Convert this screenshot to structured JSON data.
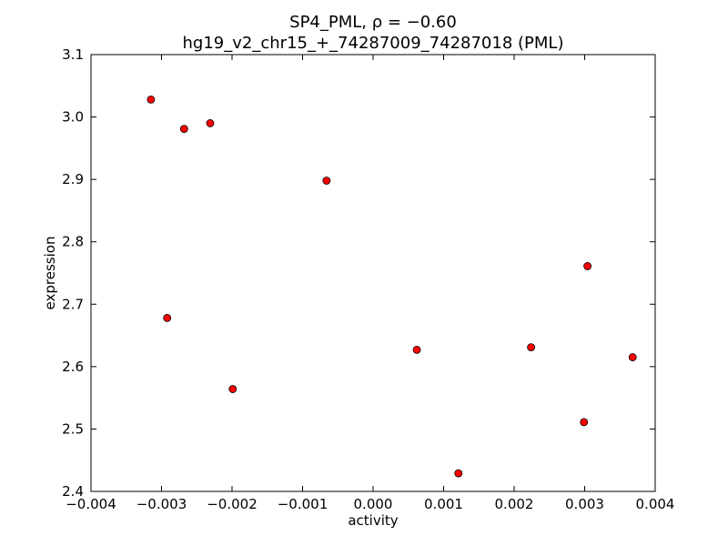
{
  "chart_data": {
    "type": "scatter",
    "title": "SP4_PML, ρ = −0.60",
    "subtitle": "hg19_v2_chr15_+_74287009_74287018 (PML)",
    "xlabel": "activity",
    "ylabel": "expression",
    "xlim": [
      -0.004,
      0.004
    ],
    "ylim": [
      2.4,
      3.1
    ],
    "grid": false,
    "legend": "none",
    "x_ticks": [
      -0.004,
      -0.003,
      -0.002,
      -0.001,
      0.0,
      0.001,
      0.002,
      0.003,
      0.004
    ],
    "x_tick_labels": [
      "−0.004",
      "−0.003",
      "−0.002",
      "−0.001",
      "0.000",
      "0.001",
      "0.002",
      "0.003",
      "0.004"
    ],
    "y_ticks": [
      2.4,
      2.5,
      2.6,
      2.7,
      2.8,
      2.9,
      3.0,
      3.1
    ],
    "y_tick_labels": [
      "2.4",
      "2.5",
      "2.6",
      "2.7",
      "2.8",
      "2.9",
      "3.0",
      "3.1"
    ],
    "marker_color": "#ff0000",
    "marker_edge_color": "#000000",
    "points": [
      {
        "x": -0.00315,
        "y": 3.028
      },
      {
        "x": -0.00268,
        "y": 2.981
      },
      {
        "x": -0.00231,
        "y": 2.99
      },
      {
        "x": -0.00292,
        "y": 2.678
      },
      {
        "x": -0.00199,
        "y": 2.564
      },
      {
        "x": -0.00066,
        "y": 2.898
      },
      {
        "x": 0.00062,
        "y": 2.627
      },
      {
        "x": 0.00121,
        "y": 2.429
      },
      {
        "x": 0.00224,
        "y": 2.631
      },
      {
        "x": 0.00299,
        "y": 2.511
      },
      {
        "x": 0.00304,
        "y": 2.761
      },
      {
        "x": 0.00368,
        "y": 2.615
      }
    ]
  }
}
